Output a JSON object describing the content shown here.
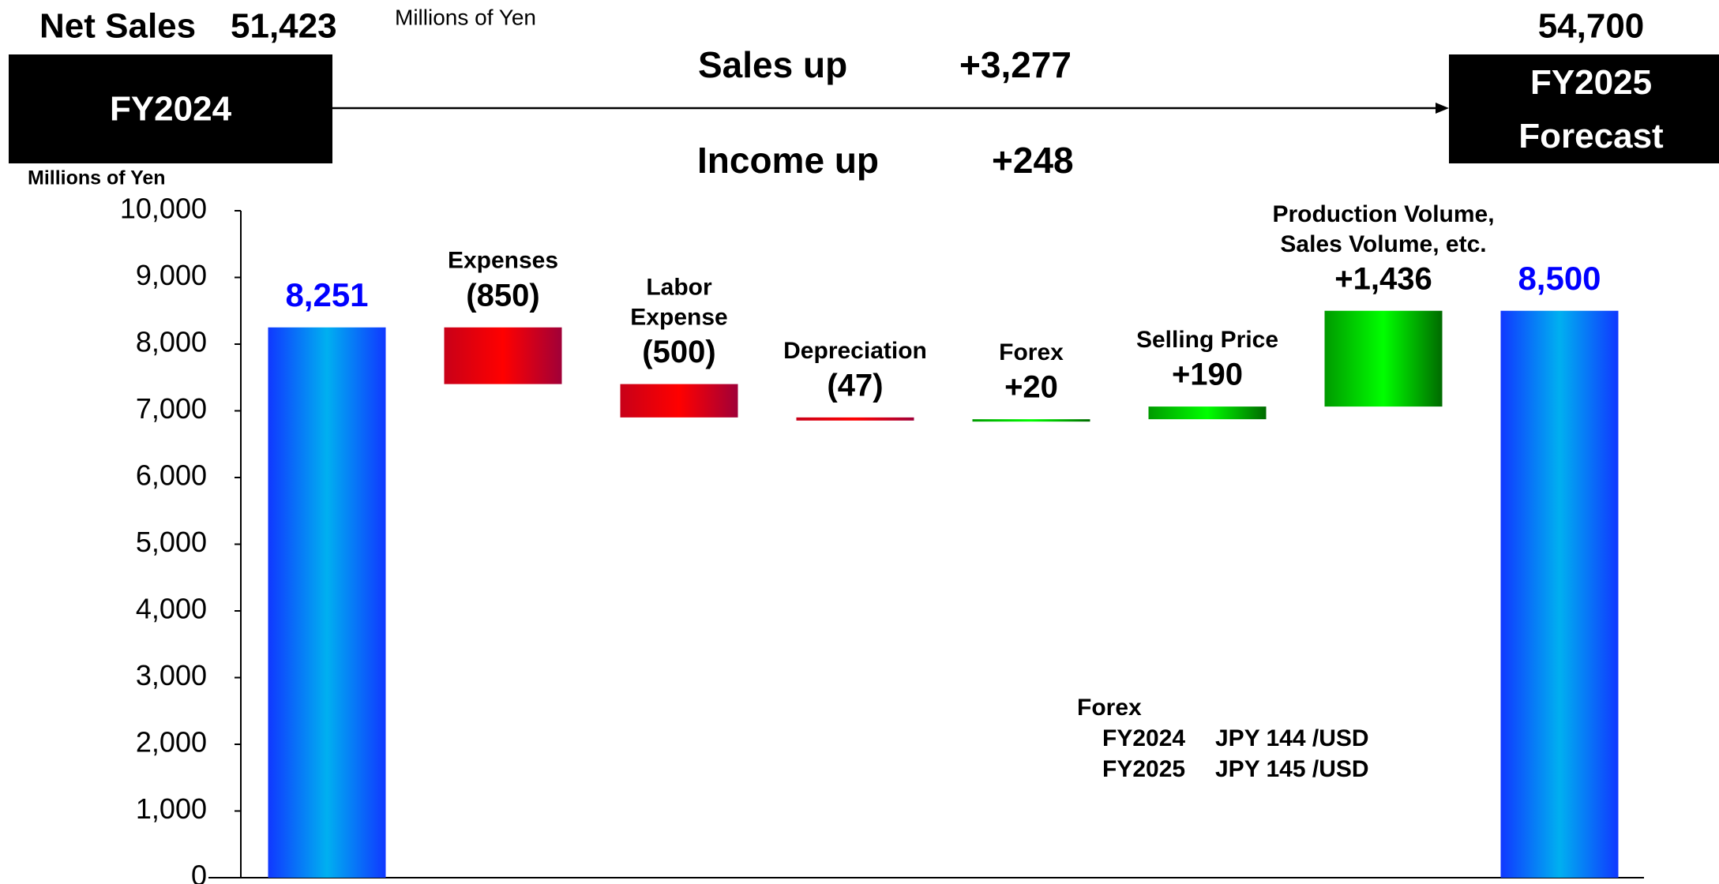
{
  "header": {
    "net_sales_label": "Net Sales",
    "net_sales_fy2024": "51,423",
    "unit": "Millions of Yen",
    "net_sales_fy2025": "54,700",
    "fy2024": "FY2024",
    "fy2025": "FY2025\nForecast",
    "sales_up_label": "Sales up",
    "sales_up": "+3,277",
    "income_up_label": "Income up",
    "income_up": "+248"
  },
  "chart_data": {
    "type": "waterfall",
    "y_label": "Millions of Yen",
    "categories": [
      null,
      "Expenses",
      "Labor\nExpense",
      "Depreciation",
      "Forex",
      "Selling Price",
      "Production Volume,\nSales Volume, etc.",
      null
    ],
    "measures": [
      "total",
      "relative",
      "relative",
      "relative",
      "relative",
      "relative",
      "relative",
      "total"
    ],
    "values": [
      8251,
      -850,
      -500,
      -47,
      20,
      190,
      1436,
      8500
    ],
    "value_labels": [
      "8,251",
      "(850)",
      "(500)",
      "(47)",
      "+20",
      "+190",
      "+1,436",
      "8,500"
    ],
    "colors": {
      "total": [
        "#1038ff",
        "#00b0f0",
        "#1038ff"
      ],
      "decrease": [
        "#c80018",
        "#ff0000",
        "#a00038"
      ],
      "increase": [
        "#009a00",
        "#00ff00",
        "#006a00"
      ]
    },
    "total_label_color": "#0000ff",
    "ylim": [
      0,
      10000
    ],
    "yticks": [
      0,
      {
        "value": 1000,
        "label": "1,000"
      },
      {
        "value": 2000,
        "label": "2,000"
      },
      {
        "value": 3000,
        "label": "3,000"
      },
      {
        "value": 4000,
        "label": "4,000"
      },
      {
        "value": 5000,
        "label": "5,000"
      },
      {
        "value": 6000,
        "label": "6,000"
      },
      {
        "value": 7000,
        "label": "7,000"
      },
      {
        "value": 8000,
        "label": "8,000"
      },
      {
        "value": 9000,
        "label": "9,000"
      },
      {
        "value": 10000,
        "label": "10,000"
      }
    ],
    "grid": false
  },
  "note": {
    "title": "Forex",
    "rows": [
      [
        "FY2024",
        "JPY 144 /USD"
      ],
      [
        "FY2025",
        "JPY 145 /USD"
      ]
    ]
  }
}
